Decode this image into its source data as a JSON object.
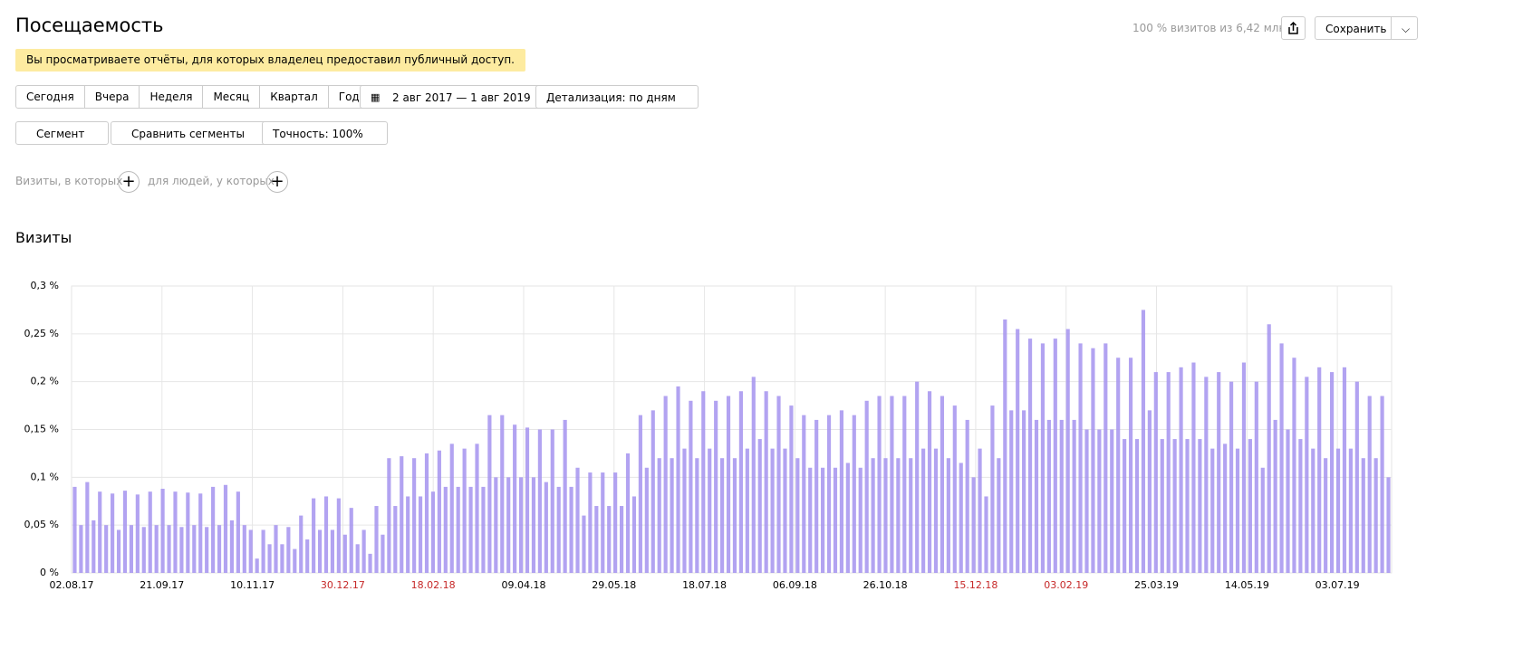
{
  "header": {
    "title": "Посещаемость",
    "visits_share": "100 % визитов из 6,42 млн",
    "save": "Сохранить"
  },
  "notice": "Вы просматриваете отчёты, для которых владелец предоставил публичный доступ.",
  "periods": [
    "Сегодня",
    "Вчера",
    "Неделя",
    "Месяц",
    "Квартал",
    "Год"
  ],
  "date_range": "2 авг 2017 — 1 авг 2019",
  "detail": "Детализация: по дням",
  "segment": "Сегмент",
  "compare": "Сравнить сегменты",
  "accuracy": "Точность: 100%",
  "filters": {
    "visits": "Визиты, в которых",
    "people": "для людей, у которых"
  },
  "chart_data": {
    "type": "bar",
    "title": "Визиты",
    "color": "#a593ef",
    "grid": true,
    "xlim": [
      0,
      730
    ],
    "xticks": [
      {
        "value": 0,
        "label": "02.08.17"
      },
      {
        "value": 50,
        "label": "21.09.17"
      },
      {
        "value": 100,
        "label": "10.11.17"
      },
      {
        "value": 150,
        "label": "30.12.17",
        "color": "#c62828"
      },
      {
        "value": 200,
        "label": "18.02.18",
        "color": "#c62828"
      },
      {
        "value": 250,
        "label": "09.04.18"
      },
      {
        "value": 300,
        "label": "29.05.18"
      },
      {
        "value": 350,
        "label": "18.07.18"
      },
      {
        "value": 400,
        "label": "06.09.18"
      },
      {
        "value": 450,
        "label": "26.10.18"
      },
      {
        "value": 500,
        "label": "15.12.18",
        "color": "#c62828"
      },
      {
        "value": 550,
        "label": "03.02.19",
        "color": "#c62828"
      },
      {
        "value": 600,
        "label": "25.03.19"
      },
      {
        "value": 650,
        "label": "14.05.19"
      },
      {
        "value": 700,
        "label": "03.07.19"
      }
    ],
    "ylim": [
      0,
      0.3
    ],
    "yticks": [
      {
        "value": 0,
        "label": "0 %"
      },
      {
        "value": 0.05,
        "label": "0,05 %"
      },
      {
        "value": 0.1,
        "label": "0,1 %"
      },
      {
        "value": 0.15,
        "label": "0,15 %"
      },
      {
        "value": 0.2,
        "label": "0,2 %"
      },
      {
        "value": 0.25,
        "label": "0,25 %"
      },
      {
        "value": 0.3,
        "label": "0,3 %"
      }
    ],
    "values": [
      0.09,
      0.05,
      0.095,
      0.055,
      0.085,
      0.05,
      0.083,
      0.045,
      0.086,
      0.05,
      0.082,
      0.048,
      0.085,
      0.05,
      0.088,
      0.05,
      0.085,
      0.048,
      0.084,
      0.05,
      0.083,
      0.048,
      0.09,
      0.05,
      0.092,
      0.055,
      0.085,
      0.05,
      0.045,
      0.015,
      0.045,
      0.03,
      0.05,
      0.03,
      0.048,
      0.025,
      0.06,
      0.035,
      0.078,
      0.045,
      0.08,
      0.045,
      0.078,
      0.04,
      0.068,
      0.03,
      0.045,
      0.02,
      0.07,
      0.04,
      0.12,
      0.07,
      0.122,
      0.08,
      0.12,
      0.08,
      0.125,
      0.085,
      0.128,
      0.09,
      0.135,
      0.09,
      0.13,
      0.09,
      0.135,
      0.09,
      0.165,
      0.1,
      0.165,
      0.1,
      0.155,
      0.1,
      0.152,
      0.1,
      0.15,
      0.095,
      0.15,
      0.09,
      0.16,
      0.09,
      0.11,
      0.06,
      0.105,
      0.07,
      0.105,
      0.07,
      0.105,
      0.07,
      0.125,
      0.08,
      0.165,
      0.11,
      0.17,
      0.12,
      0.185,
      0.12,
      0.195,
      0.13,
      0.18,
      0.12,
      0.19,
      0.13,
      0.18,
      0.12,
      0.185,
      0.12,
      0.19,
      0.13,
      0.205,
      0.14,
      0.19,
      0.13,
      0.185,
      0.13,
      0.175,
      0.12,
      0.165,
      0.11,
      0.16,
      0.11,
      0.165,
      0.11,
      0.17,
      0.115,
      0.165,
      0.11,
      0.18,
      0.12,
      0.185,
      0.12,
      0.185,
      0.12,
      0.185,
      0.12,
      0.2,
      0.13,
      0.19,
      0.13,
      0.185,
      0.12,
      0.175,
      0.115,
      0.16,
      0.1,
      0.13,
      0.08,
      0.175,
      0.12,
      0.265,
      0.17,
      0.255,
      0.17,
      0.245,
      0.16,
      0.24,
      0.16,
      0.245,
      0.16,
      0.255,
      0.16,
      0.24,
      0.15,
      0.235,
      0.15,
      0.24,
      0.15,
      0.225,
      0.14,
      0.225,
      0.14,
      0.275,
      0.17,
      0.21,
      0.14,
      0.21,
      0.14,
      0.215,
      0.14,
      0.22,
      0.14,
      0.205,
      0.13,
      0.21,
      0.135,
      0.2,
      0.13,
      0.22,
      0.14,
      0.2,
      0.11,
      0.26,
      0.16,
      0.24,
      0.15,
      0.225,
      0.14,
      0.205,
      0.13,
      0.215,
      0.12,
      0.21,
      0.13,
      0.215,
      0.13,
      0.2,
      0.12,
      0.185,
      0.12,
      0.185,
      0.1
    ]
  }
}
